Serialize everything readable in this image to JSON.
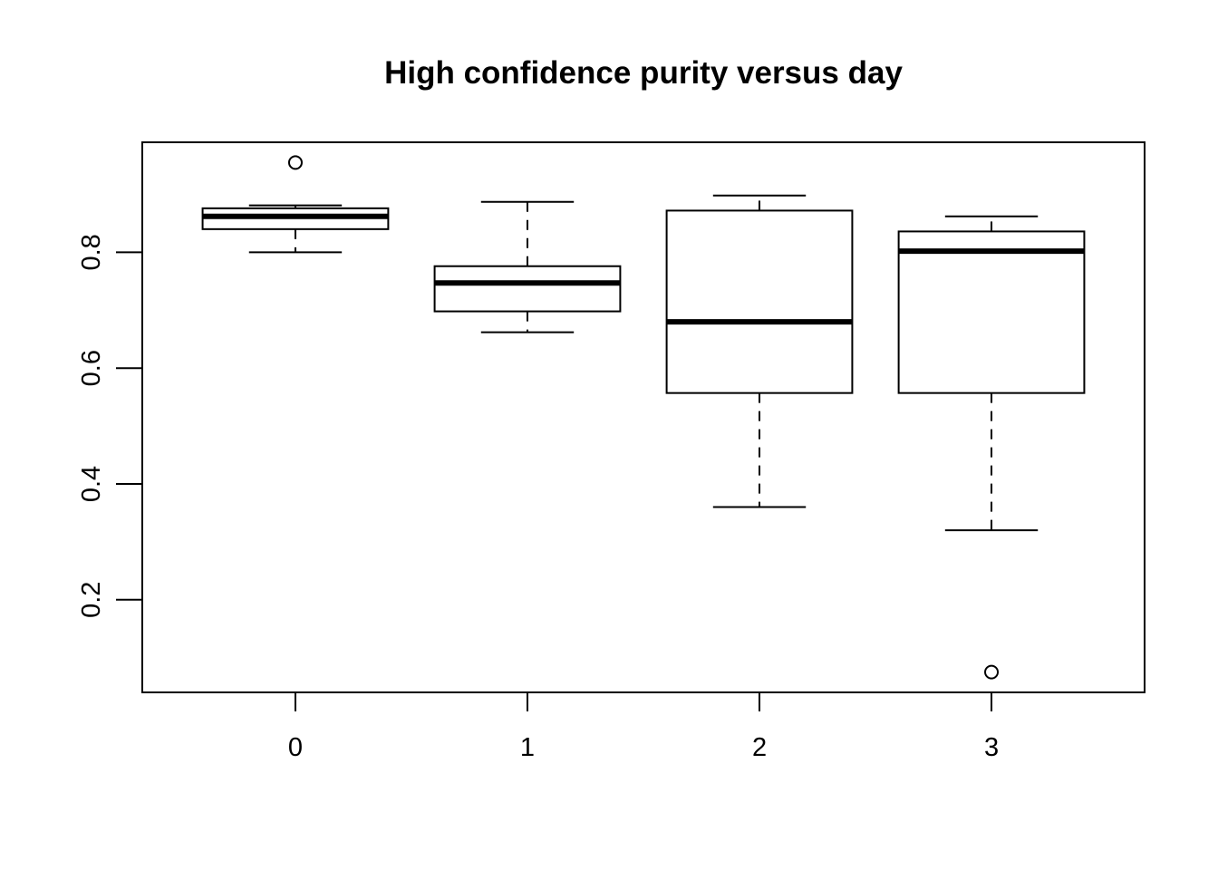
{
  "chart_data": {
    "type": "boxplot",
    "title": "High confidence purity versus day",
    "xlabel": "",
    "ylabel": "",
    "categories": [
      "0",
      "1",
      "2",
      "3"
    ],
    "ylim": [
      0.04,
      0.99
    ],
    "y_ticks": [
      0.2,
      0.4,
      0.6,
      0.8
    ],
    "y_tick_labels": [
      "0.2",
      "0.4",
      "0.6",
      "0.8"
    ],
    "grid": false,
    "boxes": [
      {
        "category": "0",
        "whisker_low": 0.8,
        "q1": 0.84,
        "median": 0.862,
        "q3": 0.876,
        "whisker_high": 0.881,
        "outliers": [
          0.955
        ]
      },
      {
        "category": "1",
        "whisker_low": 0.662,
        "q1": 0.698,
        "median": 0.747,
        "q3": 0.776,
        "whisker_high": 0.887,
        "outliers": []
      },
      {
        "category": "2",
        "whisker_low": 0.36,
        "q1": 0.557,
        "median": 0.68,
        "q3": 0.872,
        "whisker_high": 0.898,
        "outliers": []
      },
      {
        "category": "3",
        "whisker_low": 0.32,
        "q1": 0.557,
        "median": 0.802,
        "q3": 0.836,
        "whisker_high": 0.862,
        "outliers": [
          0.075
        ]
      }
    ],
    "colors": {
      "stroke": "#000000",
      "fill": "#ffffff"
    }
  }
}
